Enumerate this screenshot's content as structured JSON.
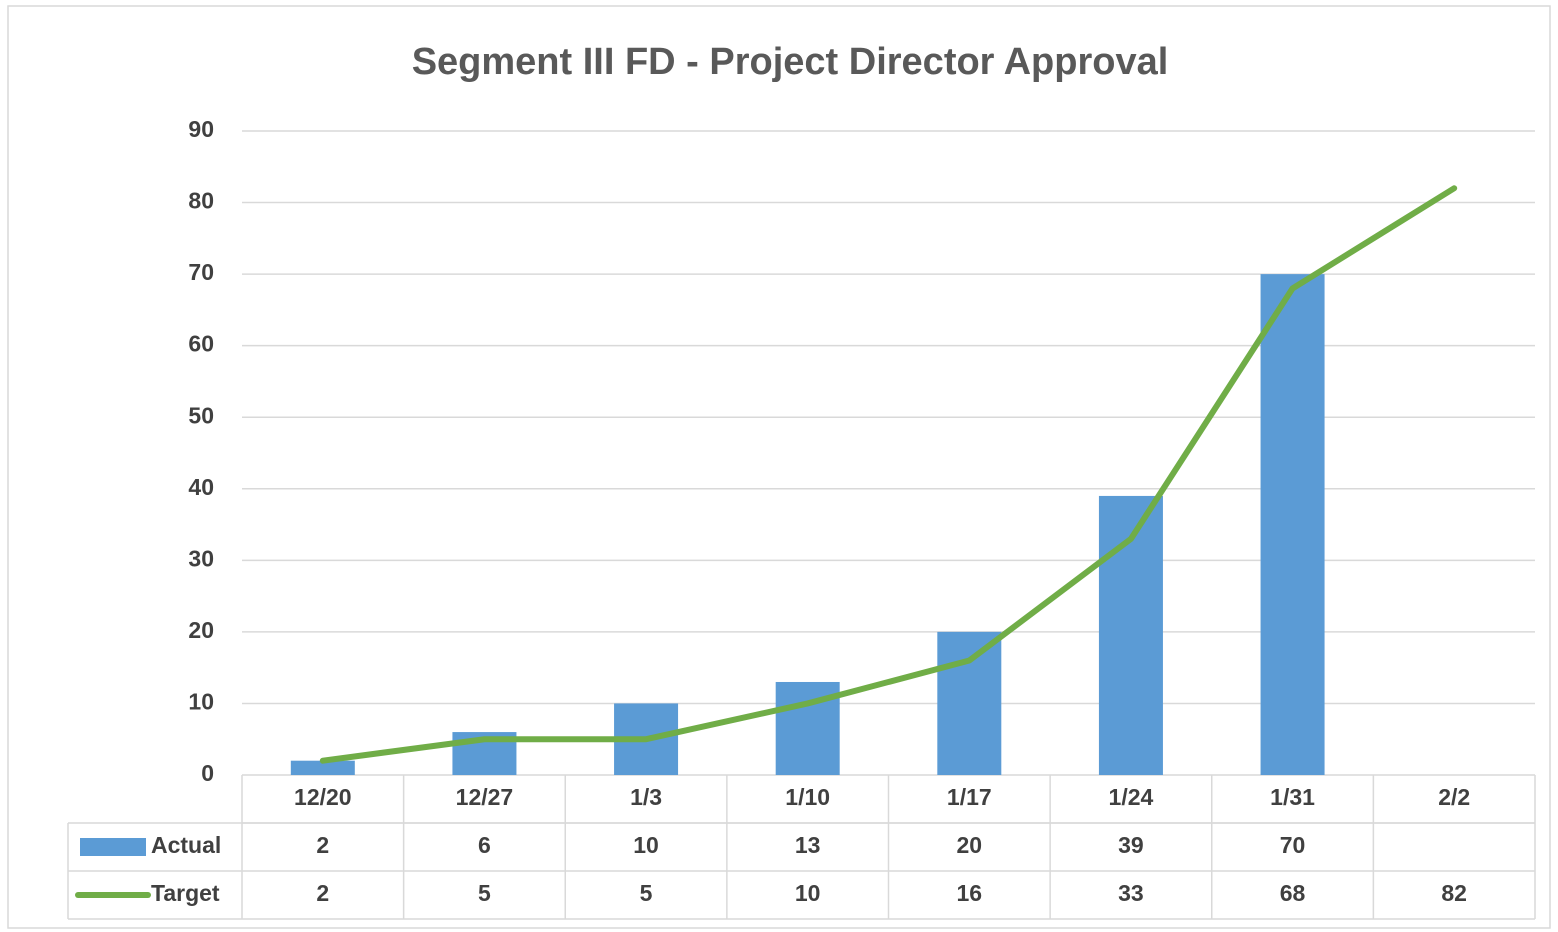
{
  "chart_data": {
    "type": "bar",
    "title": "Segment III FD - Project Director Approval",
    "categories": [
      "12/20",
      "12/27",
      "1/3",
      "1/10",
      "1/17",
      "1/24",
      "1/31",
      "2/2"
    ],
    "series": [
      {
        "name": "Actual",
        "type": "bar",
        "color": "#5b9bd5",
        "values": [
          2,
          6,
          10,
          13,
          20,
          39,
          70,
          null
        ]
      },
      {
        "name": "Target",
        "type": "line",
        "color": "#70ad47",
        "values": [
          2,
          5,
          5,
          10,
          16,
          33,
          68,
          82
        ]
      }
    ],
    "ylim": [
      0,
      90
    ],
    "yticks": [
      0,
      10,
      20,
      30,
      40,
      50,
      60,
      70,
      80,
      90
    ],
    "grid": true,
    "data_table": true
  }
}
